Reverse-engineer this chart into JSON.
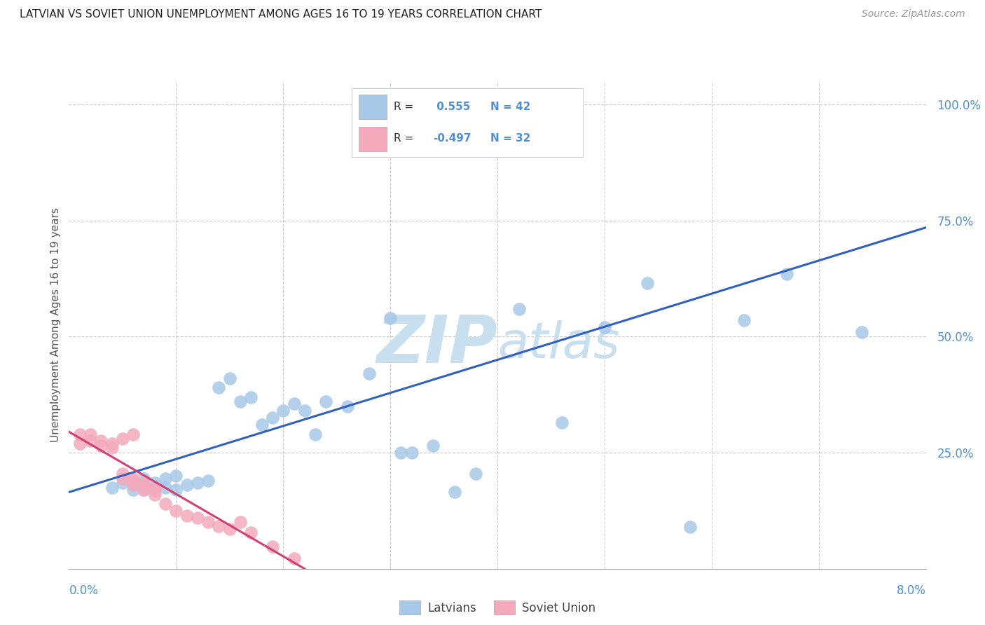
{
  "title": "LATVIAN VS SOVIET UNION UNEMPLOYMENT AMONG AGES 16 TO 19 YEARS CORRELATION CHART",
  "source": "Source: ZipAtlas.com",
  "ylabel": "Unemployment Among Ages 16 to 19 years",
  "xmin": 0.0,
  "xmax": 0.08,
  "ymin": 0.0,
  "ymax": 1.05,
  "yticks": [
    0.0,
    0.25,
    0.5,
    0.75,
    1.0
  ],
  "ytick_labels": [
    "",
    "25.0%",
    "50.0%",
    "75.0%",
    "100.0%"
  ],
  "latvian_color": "#A8C8E8",
  "soviet_color": "#F4AABC",
  "latvian_line_color": "#3060C0",
  "soviet_line_color": "#D04070",
  "tick_label_color": "#5090D0",
  "latvian_R": 0.555,
  "latvian_N": 42,
  "soviet_R": -0.497,
  "soviet_N": 32,
  "legend_label_latvians": "Latvians",
  "legend_label_soviet": "Soviet Union",
  "background_color": "#FFFFFF",
  "grid_color": "#CCCCCC",
  "watermark_color": "#C8DFF0",
  "latvian_points_x": [
    0.004,
    0.005,
    0.006,
    0.006,
    0.007,
    0.007,
    0.008,
    0.008,
    0.009,
    0.009,
    0.01,
    0.01,
    0.011,
    0.012,
    0.013,
    0.014,
    0.015,
    0.016,
    0.017,
    0.018,
    0.019,
    0.02,
    0.021,
    0.022,
    0.023,
    0.024,
    0.026,
    0.028,
    0.03,
    0.031,
    0.032,
    0.034,
    0.036,
    0.038,
    0.042,
    0.046,
    0.05,
    0.054,
    0.058,
    0.063,
    0.067,
    0.074
  ],
  "latvian_points_y": [
    0.175,
    0.185,
    0.17,
    0.185,
    0.17,
    0.195,
    0.175,
    0.185,
    0.175,
    0.195,
    0.17,
    0.2,
    0.18,
    0.185,
    0.19,
    0.39,
    0.41,
    0.36,
    0.37,
    0.31,
    0.325,
    0.34,
    0.355,
    0.34,
    0.29,
    0.36,
    0.35,
    0.42,
    0.54,
    0.25,
    0.25,
    0.265,
    0.165,
    0.205,
    0.56,
    0.315,
    0.52,
    0.615,
    0.09,
    0.535,
    0.635,
    0.51
  ],
  "soviet_points_x": [
    0.001,
    0.001,
    0.002,
    0.002,
    0.003,
    0.003,
    0.004,
    0.004,
    0.005,
    0.005,
    0.005,
    0.006,
    0.006,
    0.006,
    0.006,
    0.007,
    0.007,
    0.007,
    0.008,
    0.008,
    0.008,
    0.009,
    0.01,
    0.011,
    0.012,
    0.013,
    0.014,
    0.015,
    0.016,
    0.017,
    0.019,
    0.021
  ],
  "soviet_points_y": [
    0.27,
    0.29,
    0.275,
    0.29,
    0.265,
    0.275,
    0.26,
    0.27,
    0.195,
    0.205,
    0.28,
    0.18,
    0.19,
    0.195,
    0.29,
    0.17,
    0.178,
    0.185,
    0.16,
    0.168,
    0.175,
    0.14,
    0.125,
    0.115,
    0.11,
    0.1,
    0.092,
    0.086,
    0.1,
    0.078,
    0.048,
    0.022
  ],
  "lv_line_x0": 0.0,
  "lv_line_y0": 0.165,
  "lv_line_x1": 0.08,
  "lv_line_y1": 0.735,
  "sv_line_x0": 0.0,
  "sv_line_y0": 0.295,
  "sv_line_x1": 0.022,
  "sv_line_y1": 0.0
}
